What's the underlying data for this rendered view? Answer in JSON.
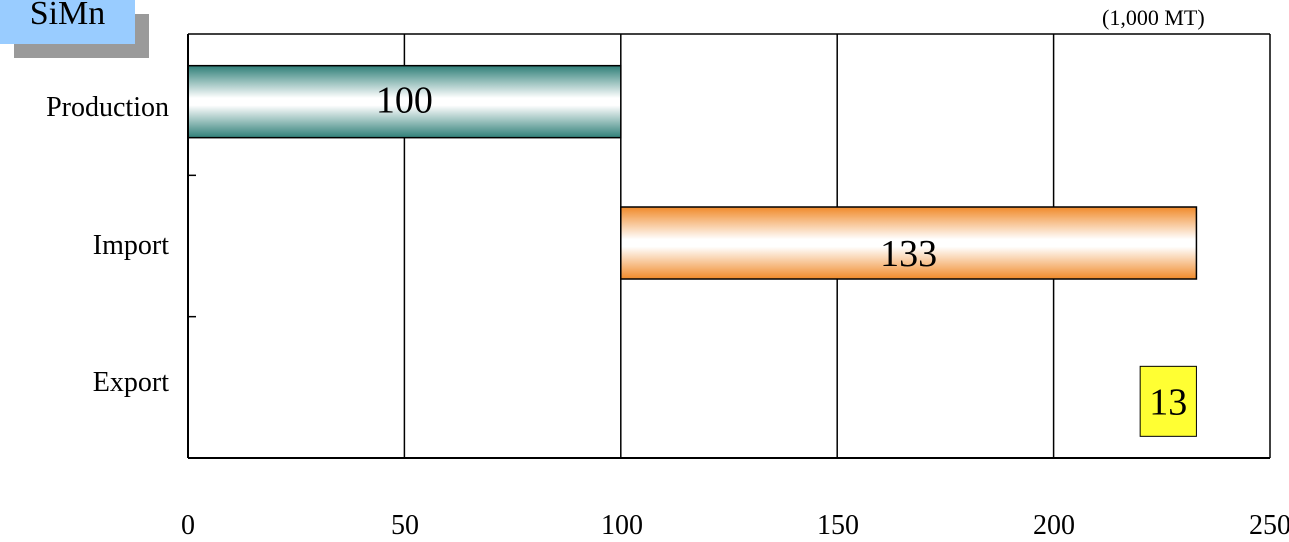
{
  "chart_data": {
    "type": "bar",
    "orientation": "horizontal",
    "subtype": "waterfall",
    "title": "SiMn",
    "units": "(1,000 MT)",
    "categories": [
      "Production",
      "Import",
      "Export"
    ],
    "bars": [
      {
        "category": "Production",
        "start": 0,
        "end": 100,
        "value": 100,
        "label": "100",
        "color": "#2f7f78"
      },
      {
        "category": "Import",
        "start": 100,
        "end": 233,
        "value": 133,
        "label": "133",
        "color": "#f08a2a"
      },
      {
        "category": "Export",
        "start": 220,
        "end": 233,
        "value": 13,
        "label": "13",
        "color": "#ffff33"
      }
    ],
    "xlim": [
      0,
      250
    ],
    "x_ticks": [
      "0",
      "50",
      "100",
      "150",
      "200",
      "250"
    ],
    "x_tick_values": [
      0,
      50,
      100,
      150,
      200,
      250
    ],
    "grid": true,
    "legend": "none"
  },
  "colors": {
    "title_box": "#99ccff",
    "title_shadow": "#9a9a9a",
    "production_bar": "#2f7f78",
    "import_bar": "#f08a2a",
    "export_bar": "#ffff33"
  }
}
